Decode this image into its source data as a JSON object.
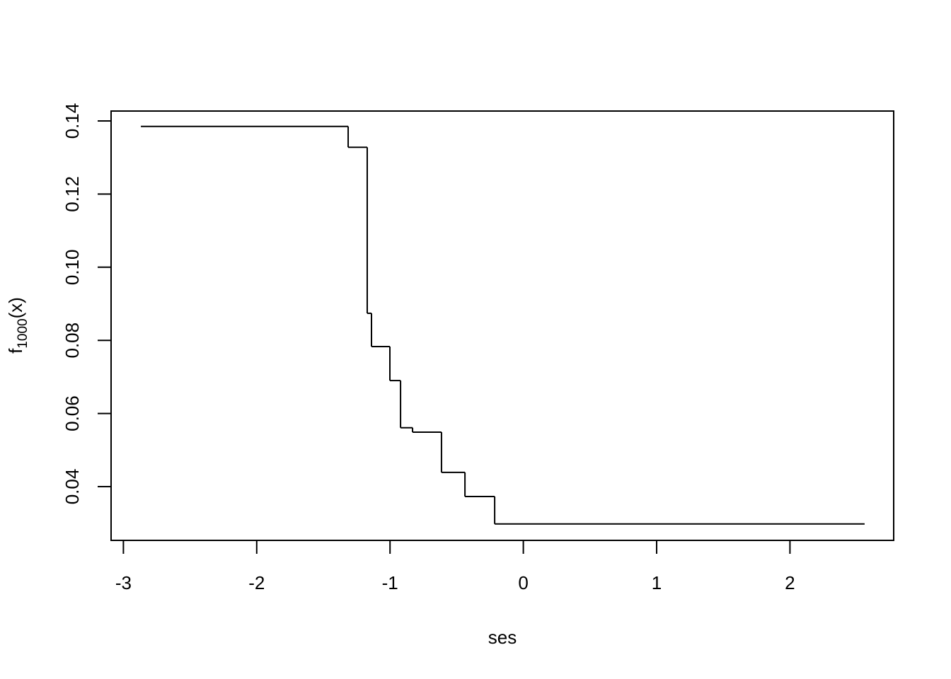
{
  "chart_data": {
    "type": "line",
    "style": "step",
    "title": "",
    "xlabel": "ses",
    "ylabel": {
      "base": "f",
      "subscript": "1000",
      "suffix": "(x)"
    },
    "xlim": [
      -3.09,
      2.78
    ],
    "ylim": [
      0.0268,
      0.1443
    ],
    "x_ticks": [
      -3,
      -2,
      -1,
      0,
      1,
      2
    ],
    "x_tick_labels": [
      "-3",
      "-2",
      "-1",
      "0",
      "1",
      "2"
    ],
    "y_ticks": [
      0.04,
      0.06,
      0.08,
      0.1,
      0.12,
      0.14
    ],
    "y_tick_labels": [
      "0.04",
      "0.06",
      "0.08",
      "0.10",
      "0.12",
      "0.14"
    ],
    "grid": false,
    "line_color": "#000000",
    "steps": [
      {
        "x_start": -2.869,
        "x_end": -1.314,
        "y": 0.1385
      },
      {
        "x_start": -1.314,
        "x_end": -1.171,
        "y": 0.1328
      },
      {
        "x_start": -1.171,
        "x_end": -1.139,
        "y": 0.0874
      },
      {
        "x_start": -1.139,
        "x_end": -1.001,
        "y": 0.0783
      },
      {
        "x_start": -1.001,
        "x_end": -0.921,
        "y": 0.069
      },
      {
        "x_start": -0.921,
        "x_end": -0.831,
        "y": 0.0561
      },
      {
        "x_start": -0.831,
        "x_end": -0.614,
        "y": 0.0549
      },
      {
        "x_start": -0.614,
        "x_end": -0.438,
        "y": 0.0439
      },
      {
        "x_start": -0.438,
        "x_end": -0.215,
        "y": 0.0373
      },
      {
        "x_start": -0.215,
        "x_end": 2.56,
        "y": 0.0298
      }
    ]
  }
}
